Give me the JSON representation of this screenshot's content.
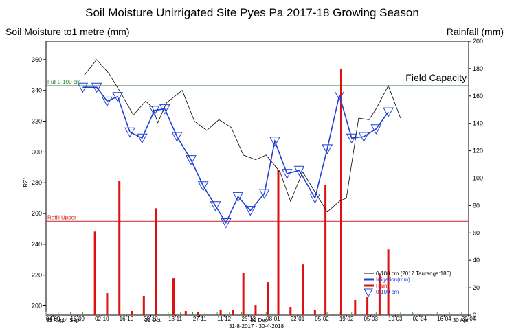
{
  "chart_data": {
    "type": "line",
    "title": "Soil Moisture Unirrigated Site Pyes Pa 2017-18 Growing Season",
    "ylabel_left": "Soil Moisture to1 metre (mm)",
    "ylabel_right": "Rainfall (mm)",
    "y_axis_small_label": "RZ1",
    "date_range_label": "31-8-2017 - 30-4-2018",
    "left_axis": {
      "min": 194,
      "max": 372,
      "ticks": [
        200,
        220,
        240,
        260,
        280,
        300,
        320,
        340,
        360
      ]
    },
    "right_axis": {
      "min": 0,
      "max": 200,
      "ticks": [
        0,
        20,
        40,
        60,
        80,
        100,
        120,
        140,
        160,
        180,
        200
      ]
    },
    "x_axis": {
      "start": "2017-08-31",
      "end": "2018-04-30",
      "tick_labels": [
        {
          "date": "2017-09-04",
          "label": "04-09"
        },
        {
          "date": "2017-09-18",
          "label": "18-09"
        },
        {
          "date": "2017-10-02",
          "label": "02-10"
        },
        {
          "date": "2017-10-16",
          "label": "16-10"
        },
        {
          "date": "2017-10-30",
          "label": "30-10"
        },
        {
          "date": "2017-11-13",
          "label": "13-11"
        },
        {
          "date": "2017-11-27",
          "label": "27-11"
        },
        {
          "date": "2017-12-11",
          "label": "11-12"
        },
        {
          "date": "2017-12-25",
          "label": "25-12"
        },
        {
          "date": "2018-01-08",
          "label": "08-01"
        },
        {
          "date": "2018-01-22",
          "label": "22-01"
        },
        {
          "date": "2018-02-05",
          "label": "05-02"
        },
        {
          "date": "2018-02-19",
          "label": "19-02"
        },
        {
          "date": "2018-03-05",
          "label": "05-03"
        },
        {
          "date": "2018-03-19",
          "label": "19-03"
        },
        {
          "date": "2018-04-02",
          "label": "02-04"
        },
        {
          "date": "2018-04-16",
          "label": "16-04"
        },
        {
          "date": "2018-04-30",
          "label": "30-04"
        }
      ],
      "month_labels": [
        {
          "date": "2017-08-31",
          "label": "31 Aug"
        },
        {
          "date": "2017-09-14",
          "label": "14 Sep"
        },
        {
          "date": "2017-10-31",
          "label": "31 Oct"
        },
        {
          "date": "2017-12-31",
          "label": "31 Dec"
        },
        {
          "date": "2018-04-30",
          "label": "30 Apr"
        }
      ]
    },
    "reference_lines": [
      {
        "name": "Full 0-100 cm",
        "value": 343,
        "color": "#2e7d32",
        "annotation": "Field Capacity"
      },
      {
        "name": "Refill Upper",
        "value": 255,
        "color": "#cc2222"
      }
    ],
    "series": [
      {
        "name": "0-100 cm (2017 Tauranga:186)",
        "kind": "line",
        "color": "#000000",
        "points": [
          [
            "2017-09-22",
            350
          ],
          [
            "2017-09-29",
            360
          ],
          [
            "2017-10-06",
            351
          ],
          [
            "2017-10-13",
            338
          ],
          [
            "2017-10-20",
            324
          ],
          [
            "2017-10-27",
            333
          ],
          [
            "2017-10-31",
            329
          ],
          [
            "2017-11-03",
            319
          ],
          [
            "2017-11-08",
            332
          ],
          [
            "2017-11-17",
            340
          ],
          [
            "2017-11-24",
            320
          ],
          [
            "2017-12-01",
            314
          ],
          [
            "2017-12-08",
            321
          ],
          [
            "2017-12-15",
            316
          ],
          [
            "2017-12-22",
            298
          ],
          [
            "2017-12-29",
            295
          ],
          [
            "2018-01-04",
            298
          ],
          [
            "2018-01-12",
            287
          ],
          [
            "2018-01-18",
            268
          ],
          [
            "2018-01-25",
            287
          ],
          [
            "2018-02-01",
            274
          ],
          [
            "2018-02-08",
            261
          ],
          [
            "2018-02-15",
            268
          ],
          [
            "2018-02-19",
            270
          ],
          [
            "2018-02-26",
            322
          ],
          [
            "2018-03-04",
            321
          ],
          [
            "2018-03-08",
            328
          ],
          [
            "2018-03-15",
            343
          ],
          [
            "2018-03-22",
            322
          ]
        ]
      },
      {
        "name": "Irrigation(mm)",
        "kind": "bar",
        "color": "#1f3fd6",
        "values": []
      },
      {
        "name": "Rain",
        "kind": "bar",
        "color": "#dd1111",
        "values": [
          [
            "2017-09-28",
            61
          ],
          [
            "2017-10-05",
            16
          ],
          [
            "2017-10-12",
            98
          ],
          [
            "2017-10-19",
            3
          ],
          [
            "2017-10-26",
            14
          ],
          [
            "2017-11-02",
            78
          ],
          [
            "2017-11-12",
            27
          ],
          [
            "2017-11-19",
            3
          ],
          [
            "2017-11-26",
            2
          ],
          [
            "2017-12-09",
            4
          ],
          [
            "2017-12-16",
            4
          ],
          [
            "2017-12-22",
            31
          ],
          [
            "2017-12-29",
            7
          ],
          [
            "2018-01-05",
            24
          ],
          [
            "2018-01-11",
            106
          ],
          [
            "2018-01-18",
            6
          ],
          [
            "2018-01-25",
            37
          ],
          [
            "2018-02-01",
            4
          ],
          [
            "2018-02-07",
            95
          ],
          [
            "2018-02-16",
            180
          ],
          [
            "2018-02-24",
            11
          ],
          [
            "2018-03-03",
            13
          ],
          [
            "2018-03-10",
            30
          ],
          [
            "2018-03-15",
            48
          ]
        ]
      },
      {
        "name": "0-100 cm",
        "kind": "line-markers",
        "color": "#1f3fd6",
        "points": [
          [
            "2017-09-21",
            342
          ],
          [
            "2017-09-29",
            342
          ],
          [
            "2017-10-05",
            333
          ],
          [
            "2017-10-11",
            336
          ],
          [
            "2017-10-18",
            313
          ],
          [
            "2017-10-25",
            309
          ],
          [
            "2017-11-01",
            327
          ],
          [
            "2017-11-07",
            328
          ],
          [
            "2017-11-14",
            310
          ],
          [
            "2017-11-22",
            295
          ],
          [
            "2017-11-29",
            278
          ],
          [
            "2017-12-06",
            265
          ],
          [
            "2017-12-12",
            254
          ],
          [
            "2017-12-19",
            271
          ],
          [
            "2017-12-26",
            262
          ],
          [
            "2018-01-03",
            273
          ],
          [
            "2018-01-09",
            307
          ],
          [
            "2018-01-16",
            286
          ],
          [
            "2018-01-23",
            288
          ],
          [
            "2018-02-01",
            270
          ],
          [
            "2018-02-08",
            302
          ],
          [
            "2018-02-15",
            337
          ],
          [
            "2018-02-22",
            309
          ],
          [
            "2018-03-01",
            310
          ],
          [
            "2018-03-08",
            315
          ],
          [
            "2018-03-15",
            326
          ]
        ]
      }
    ],
    "legend": {
      "placement": "bottom-right",
      "items": [
        {
          "label": "0-100 cm (2017 Tauranga:186)",
          "color": "#000000",
          "marker": "line"
        },
        {
          "label": "Irrigation(mm)",
          "color": "#1f3fd6",
          "marker": "thick-line"
        },
        {
          "label": "Rain",
          "color": "#dd1111",
          "marker": "thick-line"
        },
        {
          "label": "0-100 cm",
          "color": "#1f3fd6",
          "marker": "triangle"
        }
      ]
    },
    "grid": false
  }
}
